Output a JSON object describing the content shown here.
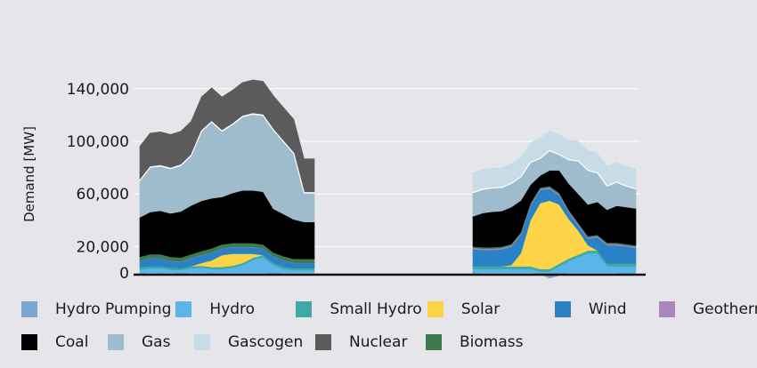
{
  "chart_data": {
    "type": "area",
    "stacked": true,
    "ylabel": "Demand [MW]",
    "yticks": [
      0,
      20000,
      60000,
      100000,
      140000
    ],
    "ytick_labels": [
      "0",
      "20,000",
      "60,000",
      "100,000",
      "140,000"
    ],
    "ylim": [
      -10000,
      165000
    ],
    "grid": true,
    "legend_position": "bottom",
    "colors": {
      "Hydro Pumping": "#7ba7d2",
      "Hydro": "#5bb5e8",
      "Small Hydro": "#3fa9a5",
      "Solar": "#fdd447",
      "Wind": "#2a82c6",
      "Geothermal": "#a986bd",
      "Coal": "#000000",
      "Gas": "#9fbccd",
      "Gascogen": "#c7dce7",
      "Nuclear": "#5b5b5b",
      "Biomass": "#3f7a4f"
    },
    "legend": {
      "row1": [
        "Hydro Pumping",
        "Hydro",
        "Small Hydro",
        "Solar",
        "Wind",
        "Geothermal"
      ],
      "row2": [
        "Coal",
        "Gas",
        "Gascogen",
        "Nuclear",
        "Biomass"
      ]
    },
    "panels": [
      {
        "x": [
          1,
          2,
          3,
          4,
          5,
          6,
          7,
          8,
          9,
          10,
          11,
          12,
          13,
          14,
          15,
          16,
          17,
          18
        ],
        "series": [
          {
            "name": "Hydro Pumping",
            "values": [
              -1000,
              0,
              -500,
              0,
              -1000,
              0,
              0,
              -500,
              0,
              0,
              0,
              0,
              0,
              -1000,
              0,
              0,
              0,
              0
            ]
          },
          {
            "name": "Hydro",
            "values": [
              2500,
              3500,
              3500,
              2500,
              2000,
              3500,
              4000,
              3000,
              3000,
              4000,
              6000,
              10000,
              12000,
              6000,
              3000,
              2000,
              2000,
              2000
            ]
          },
          {
            "name": "Small Hydro",
            "values": [
              1500,
              1500,
              1500,
              1500,
              1500,
              1500,
              1500,
              1500,
              1500,
              1500,
              1500,
              1500,
              1500,
              1500,
              1500,
              1500,
              1500,
              1500
            ]
          },
          {
            "name": "Solar",
            "values": [
              0,
              0,
              0,
              0,
              0,
              0,
              2000,
              5000,
              9000,
              9000,
              7000,
              3000,
              0,
              0,
              0,
              0,
              0,
              0
            ]
          },
          {
            "name": "Wind",
            "values": [
              5000,
              6000,
              6000,
              5000,
              5000,
              6000,
              6000,
              6000,
              5000,
              5000,
              5000,
              5000,
              5000,
              5000,
              5000,
              4000,
              4000,
              4000
            ]
          },
          {
            "name": "Geothermal",
            "values": [
              200,
              200,
              200,
              200,
              200,
              200,
              200,
              200,
              200,
              200,
              200,
              200,
              200,
              200,
              200,
              200,
              200,
              200
            ]
          },
          {
            "name": "Biomass",
            "values": [
              3000,
              3000,
              3000,
              3000,
              3000,
              3000,
              3000,
              3000,
              3000,
              3000,
              3000,
              3000,
              3000,
              3000,
              3000,
              3000,
              3000,
              3000
            ]
          },
          {
            "name": "Coal",
            "values": [
              30000,
              32000,
              33000,
              33000,
              35000,
              37000,
              38000,
              38000,
              36000,
              38000,
              40000,
              40000,
              40000,
              33000,
              32000,
              30000,
              28000,
              28000
            ]
          },
          {
            "name": "Gas",
            "values": [
              28000,
              34000,
              34000,
              34000,
              35000,
              38000,
              53000,
              58000,
              50000,
              52000,
              56000,
              58000,
              58000,
              60000,
              55000,
              50000,
              22000,
              22000
            ]
          },
          {
            "name": "Gascogen",
            "values": [
              1000,
              1000,
              1000,
              1000,
              1000,
              1000,
              1000,
              1000,
              1000,
              1000,
              1000,
              1000,
              1000,
              1000,
              1000,
              1000,
              1000,
              1000
            ]
          },
          {
            "name": "Nuclear",
            "values": [
              25000,
              25000,
              25000,
              25000,
              25000,
              25000,
              25000,
              25000,
              25000,
              25000,
              25000,
              25000,
              25000,
              25000,
              25000,
              25000,
              25000,
              25000
            ]
          }
        ]
      },
      {
        "x": [
          1,
          2,
          3,
          4,
          5,
          6,
          7,
          8,
          9,
          10,
          11,
          12,
          13,
          14,
          15,
          16,
          17,
          18
        ],
        "series": [
          {
            "name": "Hydro Pumping",
            "values": [
              -1000,
              0,
              0,
              0,
              0,
              0,
              0,
              -1000,
              -4000,
              -2000,
              0,
              0,
              0,
              0,
              0,
              0,
              -2000,
              0
            ]
          },
          {
            "name": "Hydro",
            "values": [
              3000,
              3000,
              3000,
              3000,
              3000,
              3000,
              3000,
              1000,
              1000,
              5000,
              9000,
              12000,
              15000,
              15000,
              5000,
              5000,
              5000,
              5000
            ]
          },
          {
            "name": "Small Hydro",
            "values": [
              2000,
              2000,
              2000,
              2000,
              2000,
              2000,
              2000,
              2000,
              2000,
              2000,
              2000,
              2000,
              2000,
              2000,
              2000,
              2000,
              2000,
              2000
            ]
          },
          {
            "name": "Solar",
            "values": [
              0,
              0,
              0,
              0,
              1000,
              10000,
              35000,
              50000,
              52000,
              45000,
              30000,
              18000,
              4000,
              0,
              0,
              0,
              0,
              0
            ]
          },
          {
            "name": "Wind",
            "values": [
              13000,
              12500,
              12500,
              13000,
              14000,
              14000,
              11000,
              10000,
              9000,
              7000,
              5000,
              4000,
              5000,
              10000,
              14000,
              14000,
              13000,
              12000
            ]
          },
          {
            "name": "Geothermal",
            "values": [
              1000,
              1000,
              1000,
              1000,
              1000,
              1000,
              1000,
              1000,
              1000,
              1000,
              1000,
              1000,
              1000,
              1000,
              1000,
              1000,
              1000,
              1000
            ]
          },
          {
            "name": "Biomass",
            "values": [
              1000,
              1000,
              1000,
              1000,
              1000,
              1000,
              1000,
              1000,
              1000,
              1000,
              1000,
              1000,
              1000,
              1000,
              1000,
              1000,
              1000,
              1000
            ]
          },
          {
            "name": "Coal",
            "values": [
              23000,
              26000,
              27000,
              27000,
              28000,
              24000,
              14000,
              9000,
              12000,
              17000,
              20000,
              22000,
              24000,
              25000,
              25000,
              28000,
              28000,
              28000
            ]
          },
          {
            "name": "Gas",
            "values": [
              18000,
              18000,
              18000,
              18000,
              18000,
              18000,
              17000,
              13000,
              15000,
              12000,
              18000,
              25000,
              26000,
              22000,
              18000,
              18000,
              16000,
              15000
            ]
          },
          {
            "name": "Gascogen",
            "values": [
              15000,
              15000,
              15000,
              15000,
              15000,
              15000,
              15000,
              15000,
              15000,
              15000,
              15000,
              15000,
              15000,
              15000,
              15000,
              15000,
              15000,
              15000
            ]
          },
          {
            "name": "Nuclear",
            "values": [
              0,
              0,
              0,
              0,
              0,
              0,
              0,
              0,
              0,
              0,
              0,
              0,
              0,
              0,
              0,
              0,
              0,
              0
            ]
          }
        ]
      }
    ]
  }
}
